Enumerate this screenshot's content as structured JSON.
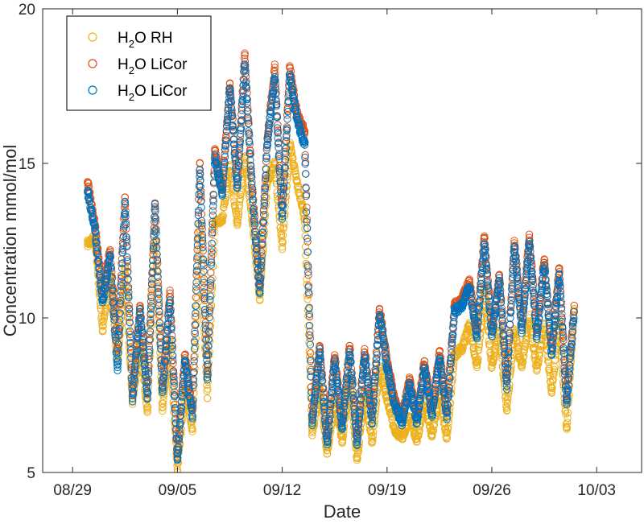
{
  "chart_data": {
    "type": "scatter",
    "xlabel": "Date",
    "ylabel": "Concentration mmol/mol",
    "x_ticks": [
      "08/29",
      "09/05",
      "09/12",
      "09/19",
      "09/26",
      "10/03"
    ],
    "x_tick_dates": [
      "2015-08-29",
      "2015-09-05",
      "2015-09-12",
      "2015-09-19",
      "2015-09-26",
      "2015-10-03"
    ],
    "xlim": [
      "2015-08-27",
      "2015-10-06"
    ],
    "y_ticks": [
      5,
      10,
      15,
      20
    ],
    "ylim": [
      5,
      20
    ],
    "grid": false,
    "box": true,
    "legend_position": "top-left",
    "marker": "open-circle",
    "series": [
      {
        "name": "H2O RH",
        "legend": {
          "base": "H",
          "sub": "2",
          "rest": "O RH"
        },
        "color": "#EDB120",
        "points": [
          [
            "2015-08-30T00:00",
            12.4
          ],
          [
            "2015-08-30T12:00",
            12.6
          ],
          [
            "2015-08-31T00:00",
            9.6
          ],
          [
            "2015-08-31T12:00",
            11.4
          ],
          [
            "2015-09-01T00:00",
            8.6
          ],
          [
            "2015-09-01T12:00",
            11.6
          ],
          [
            "2015-09-02T00:00",
            7.3
          ],
          [
            "2015-09-02T12:00",
            9.2
          ],
          [
            "2015-09-03T00:00",
            7.0
          ],
          [
            "2015-09-03T12:00",
            12.8
          ],
          [
            "2015-09-04T00:00",
            7.1
          ],
          [
            "2015-09-04T12:00",
            9.3
          ],
          [
            "2015-09-05T00:00",
            5.1
          ],
          [
            "2015-09-05T12:00",
            7.8
          ],
          [
            "2015-09-06T00:00",
            6.4
          ],
          [
            "2015-09-06T12:00",
            13.0
          ],
          [
            "2015-09-07T00:00",
            7.4
          ],
          [
            "2015-09-07T12:00",
            13.1
          ],
          [
            "2015-09-08T00:00",
            13.2
          ],
          [
            "2015-09-08T12:00",
            14.9
          ],
          [
            "2015-09-09T00:00",
            13.0
          ],
          [
            "2015-09-09T12:00",
            15.2
          ],
          [
            "2015-09-10T00:00",
            13.2
          ],
          [
            "2015-09-10T12:00",
            10.6
          ],
          [
            "2015-09-11T00:00",
            14.4
          ],
          [
            "2015-09-11T12:00",
            15.0
          ],
          [
            "2015-09-12T00:00",
            12.3
          ],
          [
            "2015-09-12T12:00",
            15.6
          ],
          [
            "2015-09-13T00:00",
            14.4
          ],
          [
            "2015-09-13T12:00",
            13.2
          ],
          [
            "2015-09-14T00:00",
            6.2
          ],
          [
            "2015-09-14T12:00",
            7.8
          ],
          [
            "2015-09-15T00:00",
            5.6
          ],
          [
            "2015-09-15T12:00",
            7.4
          ],
          [
            "2015-09-16T00:00",
            6.0
          ],
          [
            "2015-09-16T12:00",
            8.0
          ],
          [
            "2015-09-17T00:00",
            5.4
          ],
          [
            "2015-09-17T12:00",
            7.6
          ],
          [
            "2015-09-18T00:00",
            6.0
          ],
          [
            "2015-09-18T12:00",
            8.4
          ],
          [
            "2015-09-19T00:00",
            7.4
          ],
          [
            "2015-09-19T12:00",
            6.4
          ],
          [
            "2015-09-20T00:00",
            6.1
          ],
          [
            "2015-09-20T12:00",
            6.8
          ],
          [
            "2015-09-21T00:00",
            6.0
          ],
          [
            "2015-09-21T12:00",
            7.3
          ],
          [
            "2015-09-22T00:00",
            6.2
          ],
          [
            "2015-09-22T12:00",
            7.6
          ],
          [
            "2015-09-23T00:00",
            6.1
          ],
          [
            "2015-09-23T12:00",
            8.8
          ],
          [
            "2015-09-24T00:00",
            9.0
          ],
          [
            "2015-09-24T12:00",
            9.8
          ],
          [
            "2015-09-25T00:00",
            8.4
          ],
          [
            "2015-09-25T12:00",
            10.9
          ],
          [
            "2015-09-26T00:00",
            8.4
          ],
          [
            "2015-09-26T12:00",
            9.6
          ],
          [
            "2015-09-27T00:00",
            7.0
          ],
          [
            "2015-09-27T12:00",
            9.6
          ],
          [
            "2015-09-28T00:00",
            8.4
          ],
          [
            "2015-09-28T12:00",
            10.0
          ],
          [
            "2015-09-29T00:00",
            8.3
          ],
          [
            "2015-09-29T12:00",
            9.8
          ],
          [
            "2015-09-30T00:00",
            7.6
          ],
          [
            "2015-09-30T12:00",
            9.9
          ],
          [
            "2015-10-01T00:00",
            6.4
          ],
          [
            "2015-10-01T12:00",
            10.3
          ]
        ]
      },
      {
        "name": "H2O LiCor",
        "legend": {
          "base": "H",
          "sub": "2",
          "rest": "O LiCor"
        },
        "color": "#D95319",
        "points": [
          [
            "2015-08-30T00:00",
            14.4
          ],
          [
            "2015-08-30T12:00",
            13.0
          ],
          [
            "2015-08-31T00:00",
            10.8
          ],
          [
            "2015-08-31T12:00",
            12.2
          ],
          [
            "2015-09-01T00:00",
            9.0
          ],
          [
            "2015-09-01T12:00",
            13.9
          ],
          [
            "2015-09-02T00:00",
            7.6
          ],
          [
            "2015-09-02T12:00",
            10.4
          ],
          [
            "2015-09-03T00:00",
            7.6
          ],
          [
            "2015-09-03T12:00",
            13.7
          ],
          [
            "2015-09-04T00:00",
            7.8
          ],
          [
            "2015-09-04T12:00",
            10.8
          ],
          [
            "2015-09-05T00:00",
            5.6
          ],
          [
            "2015-09-05T12:00",
            8.8
          ],
          [
            "2015-09-06T00:00",
            7.0
          ],
          [
            "2015-09-06T12:00",
            15.0
          ],
          [
            "2015-09-07T00:00",
            8.2
          ],
          [
            "2015-09-07T12:00",
            15.4
          ],
          [
            "2015-09-08T00:00",
            14.2
          ],
          [
            "2015-09-08T12:00",
            17.6
          ],
          [
            "2015-09-09T00:00",
            14.4
          ],
          [
            "2015-09-09T12:00",
            18.5
          ],
          [
            "2015-09-10T00:00",
            14.2
          ],
          [
            "2015-09-10T12:00",
            11.0
          ],
          [
            "2015-09-11T00:00",
            15.8
          ],
          [
            "2015-09-11T12:00",
            18.1
          ],
          [
            "2015-09-12T00:00",
            13.4
          ],
          [
            "2015-09-12T12:00",
            18.1
          ],
          [
            "2015-09-13T00:00",
            16.6
          ],
          [
            "2015-09-13T12:00",
            16.0
          ],
          [
            "2015-09-14T00:00",
            6.8
          ],
          [
            "2015-09-14T12:00",
            9.1
          ],
          [
            "2015-09-15T00:00",
            6.1
          ],
          [
            "2015-09-15T12:00",
            8.8
          ],
          [
            "2015-09-16T00:00",
            6.6
          ],
          [
            "2015-09-16T12:00",
            9.1
          ],
          [
            "2015-09-17T00:00",
            6.1
          ],
          [
            "2015-09-17T12:00",
            9.0
          ],
          [
            "2015-09-18T00:00",
            6.8
          ],
          [
            "2015-09-18T12:00",
            10.3
          ],
          [
            "2015-09-19T00:00",
            8.6
          ],
          [
            "2015-09-19T12:00",
            7.4
          ],
          [
            "2015-09-20T00:00",
            6.8
          ],
          [
            "2015-09-20T12:00",
            8.0
          ],
          [
            "2015-09-21T00:00",
            6.8
          ],
          [
            "2015-09-21T12:00",
            8.6
          ],
          [
            "2015-09-22T00:00",
            7.0
          ],
          [
            "2015-09-22T12:00",
            8.9
          ],
          [
            "2015-09-23T00:00",
            7.0
          ],
          [
            "2015-09-23T12:00",
            10.4
          ],
          [
            "2015-09-24T00:00",
            10.6
          ],
          [
            "2015-09-24T12:00",
            11.2
          ],
          [
            "2015-09-25T00:00",
            9.6
          ],
          [
            "2015-09-25T12:00",
            12.6
          ],
          [
            "2015-09-26T00:00",
            9.6
          ],
          [
            "2015-09-26T12:00",
            11.4
          ],
          [
            "2015-09-27T00:00",
            8.0
          ],
          [
            "2015-09-27T12:00",
            12.5
          ],
          [
            "2015-09-28T00:00",
            9.8
          ],
          [
            "2015-09-28T12:00",
            12.6
          ],
          [
            "2015-09-29T00:00",
            9.6
          ],
          [
            "2015-09-29T12:00",
            11.9
          ],
          [
            "2015-09-30T00:00",
            9.0
          ],
          [
            "2015-09-30T12:00",
            11.6
          ],
          [
            "2015-10-01T00:00",
            7.4
          ],
          [
            "2015-10-01T12:00",
            10.4
          ]
        ]
      },
      {
        "name": "H2O LiCor",
        "legend": {
          "base": "H",
          "sub": "2",
          "rest": "O LiCor"
        },
        "color": "#0072BD",
        "points": [
          [
            "2015-08-30T00:00",
            14.1
          ],
          [
            "2015-08-30T12:00",
            12.8
          ],
          [
            "2015-08-31T00:00",
            10.5
          ],
          [
            "2015-08-31T12:00",
            12.0
          ],
          [
            "2015-09-01T00:00",
            8.3
          ],
          [
            "2015-09-01T12:00",
            13.7
          ],
          [
            "2015-09-02T00:00",
            7.4
          ],
          [
            "2015-09-02T12:00",
            10.2
          ],
          [
            "2015-09-03T00:00",
            7.4
          ],
          [
            "2015-09-03T12:00",
            13.6
          ],
          [
            "2015-09-04T00:00",
            7.6
          ],
          [
            "2015-09-04T12:00",
            10.5
          ],
          [
            "2015-09-05T00:00",
            5.4
          ],
          [
            "2015-09-05T12:00",
            8.6
          ],
          [
            "2015-09-06T00:00",
            6.8
          ],
          [
            "2015-09-06T12:00",
            14.8
          ],
          [
            "2015-09-07T00:00",
            8.0
          ],
          [
            "2015-09-07T12:00",
            15.2
          ],
          [
            "2015-09-08T00:00",
            14.0
          ],
          [
            "2015-09-08T12:00",
            17.4
          ],
          [
            "2015-09-09T00:00",
            14.2
          ],
          [
            "2015-09-09T12:00",
            18.2
          ],
          [
            "2015-09-10T00:00",
            14.0
          ],
          [
            "2015-09-10T12:00",
            10.8
          ],
          [
            "2015-09-11T00:00",
            15.6
          ],
          [
            "2015-09-11T12:00",
            17.8
          ],
          [
            "2015-09-12T00:00",
            13.2
          ],
          [
            "2015-09-12T12:00",
            17.8
          ],
          [
            "2015-09-13T00:00",
            16.4
          ],
          [
            "2015-09-13T12:00",
            15.6
          ],
          [
            "2015-09-14T00:00",
            6.6
          ],
          [
            "2015-09-14T12:00",
            8.9
          ],
          [
            "2015-09-15T00:00",
            5.9
          ],
          [
            "2015-09-15T12:00",
            8.6
          ],
          [
            "2015-09-16T00:00",
            6.4
          ],
          [
            "2015-09-16T12:00",
            8.9
          ],
          [
            "2015-09-17T00:00",
            5.9
          ],
          [
            "2015-09-17T12:00",
            8.8
          ],
          [
            "2015-09-18T00:00",
            6.6
          ],
          [
            "2015-09-18T12:00",
            10.1
          ],
          [
            "2015-09-19T00:00",
            8.4
          ],
          [
            "2015-09-19T12:00",
            7.2
          ],
          [
            "2015-09-20T00:00",
            6.6
          ],
          [
            "2015-09-20T12:00",
            7.8
          ],
          [
            "2015-09-21T00:00",
            6.6
          ],
          [
            "2015-09-21T12:00",
            8.4
          ],
          [
            "2015-09-22T00:00",
            6.8
          ],
          [
            "2015-09-22T12:00",
            8.7
          ],
          [
            "2015-09-23T00:00",
            6.8
          ],
          [
            "2015-09-23T12:00",
            10.2
          ],
          [
            "2015-09-24T00:00",
            10.4
          ],
          [
            "2015-09-24T12:00",
            11.0
          ],
          [
            "2015-09-25T00:00",
            9.4
          ],
          [
            "2015-09-25T12:00",
            12.4
          ],
          [
            "2015-09-26T00:00",
            9.4
          ],
          [
            "2015-09-26T12:00",
            11.2
          ],
          [
            "2015-09-27T00:00",
            7.8
          ],
          [
            "2015-09-27T12:00",
            12.3
          ],
          [
            "2015-09-28T00:00",
            9.6
          ],
          [
            "2015-09-28T12:00",
            12.4
          ],
          [
            "2015-09-29T00:00",
            9.4
          ],
          [
            "2015-09-29T12:00",
            11.7
          ],
          [
            "2015-09-30T00:00",
            8.8
          ],
          [
            "2015-09-30T12:00",
            11.4
          ],
          [
            "2015-10-01T00:00",
            7.2
          ],
          [
            "2015-10-01T12:00",
            10.2
          ]
        ]
      }
    ]
  }
}
